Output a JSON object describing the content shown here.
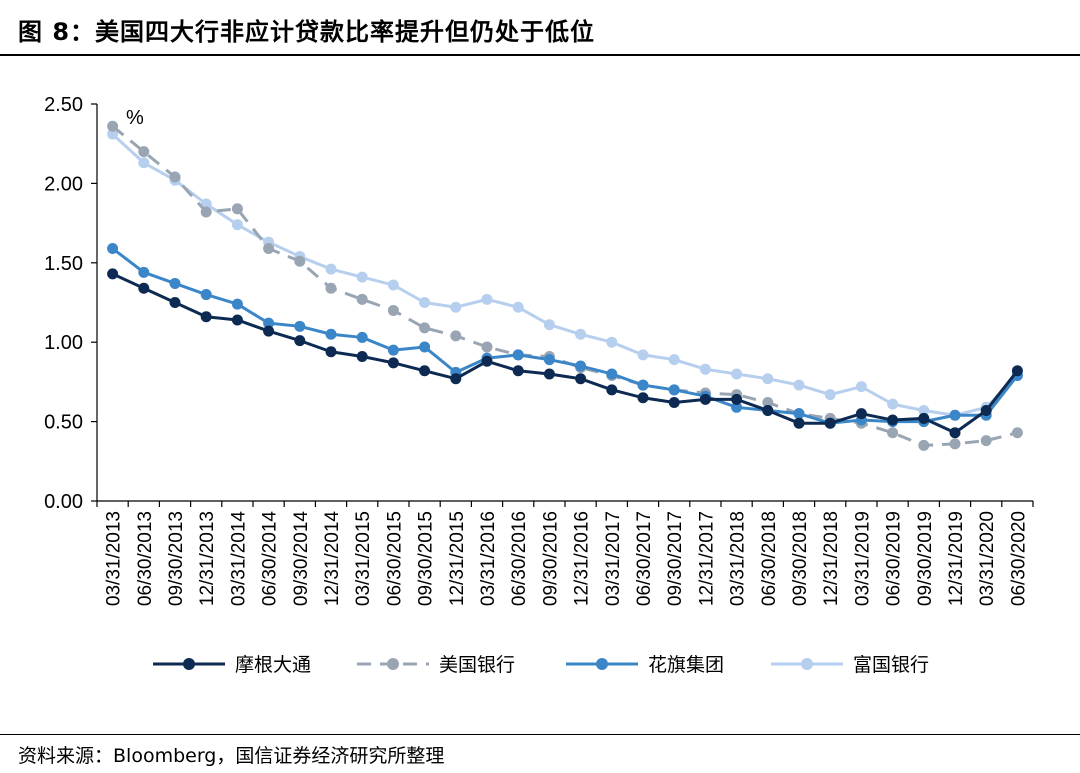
{
  "title": "图 8：美国四大行非应计贷款比率提升但仍处于低位",
  "source": "资料来源：Bloomberg，国信证券经济研究所整理",
  "chart_data": {
    "type": "line",
    "unit_label": "%",
    "ylim": [
      0,
      2.5
    ],
    "yticks": [
      "0.00",
      "0.50",
      "1.00",
      "1.50",
      "2.00",
      "2.50"
    ],
    "categories": [
      "03/31/2013",
      "06/30/2013",
      "09/30/2013",
      "12/31/2013",
      "03/31/2014",
      "06/30/2014",
      "09/30/2014",
      "12/31/2014",
      "03/31/2015",
      "06/30/2015",
      "09/30/2015",
      "12/31/2015",
      "03/31/2016",
      "06/30/2016",
      "09/30/2016",
      "12/31/2016",
      "03/31/2017",
      "06/30/2017",
      "09/30/2017",
      "12/31/2017",
      "03/31/2018",
      "06/30/2018",
      "09/30/2018",
      "12/31/2018",
      "03/31/2019",
      "06/30/2019",
      "09/30/2019",
      "12/31/2019",
      "03/31/2020",
      "06/30/2020"
    ],
    "legend_position": "bottom",
    "series": [
      {
        "name": "摩根大通",
        "color": "#0d2a52",
        "dash": false,
        "values": [
          1.43,
          1.34,
          1.25,
          1.16,
          1.14,
          1.07,
          1.01,
          0.94,
          0.91,
          0.87,
          0.82,
          0.77,
          0.88,
          0.82,
          0.8,
          0.77,
          0.7,
          0.65,
          0.62,
          0.64,
          0.64,
          0.57,
          0.49,
          0.49,
          0.55,
          0.51,
          0.52,
          0.43,
          0.57,
          0.82
        ]
      },
      {
        "name": "美国银行",
        "color": "#9aa5b3",
        "dash": true,
        "values": [
          2.36,
          2.2,
          2.04,
          1.82,
          1.84,
          1.59,
          1.51,
          1.34,
          1.27,
          1.2,
          1.09,
          1.04,
          0.97,
          0.92,
          0.91,
          0.84,
          0.79,
          0.73,
          0.7,
          0.68,
          0.67,
          0.62,
          0.55,
          0.52,
          0.49,
          0.43,
          0.35,
          0.36,
          0.38,
          0.43
        ]
      },
      {
        "name": "花旗集团",
        "color": "#3a86c8",
        "dash": false,
        "values": [
          1.59,
          1.44,
          1.37,
          1.3,
          1.24,
          1.12,
          1.1,
          1.05,
          1.03,
          0.95,
          0.97,
          0.81,
          0.9,
          0.92,
          0.89,
          0.85,
          0.8,
          0.73,
          0.7,
          0.66,
          0.59,
          0.57,
          0.55,
          0.49,
          0.51,
          0.5,
          0.5,
          0.54,
          0.54,
          0.79
        ]
      },
      {
        "name": "富国银行",
        "color": "#b7cfee",
        "dash": false,
        "values": [
          2.31,
          2.13,
          2.02,
          1.87,
          1.74,
          1.63,
          1.54,
          1.46,
          1.41,
          1.36,
          1.25,
          1.22,
          1.27,
          1.22,
          1.11,
          1.05,
          1.0,
          0.92,
          0.89,
          0.83,
          0.8,
          0.77,
          0.73,
          0.67,
          0.72,
          0.61,
          0.57,
          0.54,
          0.59,
          0.79
        ]
      }
    ]
  }
}
